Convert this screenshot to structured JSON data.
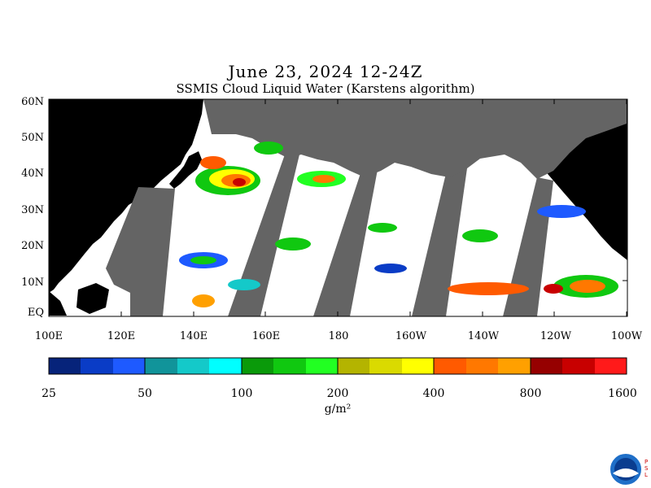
{
  "title": "June 23, 2024 12-24Z",
  "subtitle": "SSMIS Cloud Liquid Water (Karstens algorithm)",
  "lat_labels": [
    "60N",
    "50N",
    "40N",
    "30N",
    "20N",
    "10N",
    "EQ"
  ],
  "lon_labels": [
    "100E",
    "120E",
    "140E",
    "160E",
    "180",
    "160W",
    "140W",
    "120W",
    "100W"
  ],
  "colorbar": {
    "tick_labels": [
      "25",
      "50",
      "100",
      "200",
      "400",
      "800",
      "1600"
    ],
    "units": "g/m²",
    "colors": [
      "#06237a",
      "#0a3cc6",
      "#1e5aff",
      "#11949a",
      "#14c9c9",
      "#00ffff",
      "#0a9a0a",
      "#10c810",
      "#22ff22",
      "#b4b400",
      "#dada00",
      "#ffff00",
      "#ff5a00",
      "#ff7800",
      "#ffa000",
      "#960000",
      "#c80000",
      "#ff1a1a"
    ]
  },
  "map_colors": {
    "land": "#000000",
    "no_data": "#646464",
    "ocean": "#ffffff"
  },
  "logo_text": "PSL"
}
